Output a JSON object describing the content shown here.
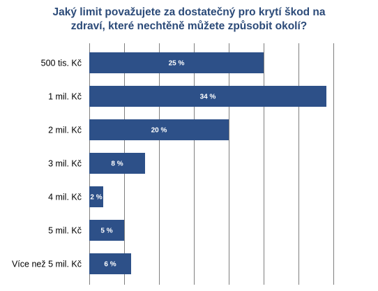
{
  "chart_data": {
    "type": "bar",
    "orientation": "horizontal",
    "title": [
      "Jaký limit považujete za dostatečný pro krytí škod na",
      "zdraví, které nechtěně můžete způsobit okolí?"
    ],
    "categories": [
      "500 tis. Kč",
      "1 mil. Kč",
      "2 mil. Kč",
      "3 mil. Kč",
      "4 mil. Kč",
      "5 mil. Kč",
      "Více než 5 mil. Kč"
    ],
    "values": [
      25,
      34,
      20,
      8,
      2,
      5,
      6
    ],
    "data_labels": [
      "25 %",
      "34 %",
      "20 %",
      "8 %",
      "2 %",
      "5 %",
      "6 %"
    ],
    "xlim": [
      0,
      40
    ],
    "gridlines": "vertical",
    "bar_color": "#2d5088",
    "title_color": "#2b4a78",
    "legend": "none"
  }
}
